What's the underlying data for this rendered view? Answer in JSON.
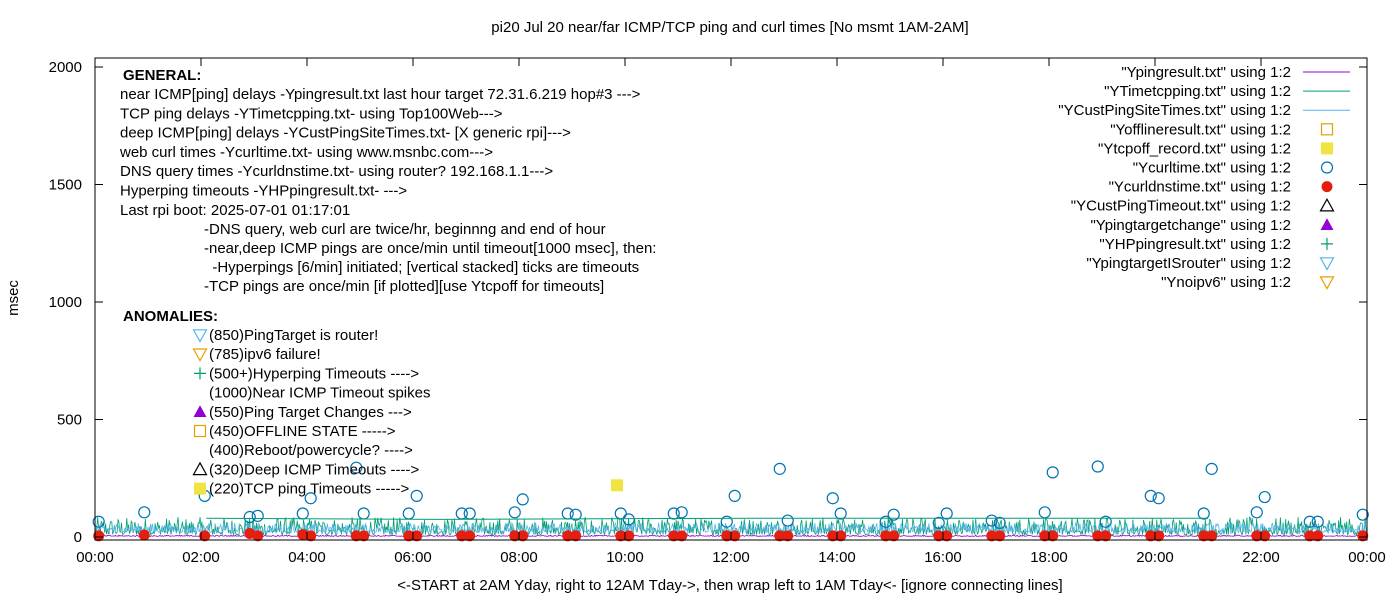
{
  "chart_data": {
    "type": "scatter",
    "title": "pi20 Jul 20  near/far ICMP/TCP ping and curl times [No msmt 1AM-2AM]",
    "xlabel": "<-START at 2AM Yday, right to 12AM Tday->, then wrap left to 1AM Tday<- [ignore connecting lines]",
    "ylabel": "msec",
    "xlim": [
      0,
      24
    ],
    "ylim": [
      0,
      2100
    ],
    "x_ticks": [
      "00:00",
      "02:00",
      "04:00",
      "06:00",
      "08:00",
      "10:00",
      "12:00",
      "14:00",
      "16:00",
      "18:00",
      "20:00",
      "22:00",
      "00:00"
    ],
    "y_ticks": [
      0,
      500,
      1000,
      1500,
      2000
    ],
    "grid": false,
    "legend_position": "top-right",
    "legend": [
      {
        "label": "\"Ypingresult.txt\" using 1:2",
        "style": "line",
        "color": "#9400d3"
      },
      {
        "label": "\"YTimetcpping.txt\" using 1:2",
        "style": "line",
        "color": "#009e73"
      },
      {
        "label": "\"YCustPingSiteTimes.txt\" using 1:2",
        "style": "line",
        "color": "#56b4e9"
      },
      {
        "label": "\"Yofflineresult.txt\" using 1:2",
        "style": "open-square",
        "color": "#e69f00"
      },
      {
        "label": "\"Ytcpoff_record.txt\" using 1:2",
        "style": "filled-square",
        "color": "#f0e442"
      },
      {
        "label": "\"Ycurltime.txt\" using 1:2",
        "style": "open-circle",
        "color": "#0072b2"
      },
      {
        "label": "\"Ycurldnstime.txt\" using 1:2",
        "style": "filled-circle",
        "color": "#e51e10"
      },
      {
        "label": "\"YCustPingTimeout.txt\" using 1:2",
        "style": "open-triangle",
        "color": "#000000"
      },
      {
        "label": "\"Ypingtargetchange\" using 1:2",
        "style": "filled-triangle",
        "color": "#9400d3"
      },
      {
        "label": "\"YHPpingresult.txt\" using 1:2",
        "style": "plus",
        "color": "#009e73"
      },
      {
        "label": "\"YpingtargetISrouter\" using 1:2",
        "style": "open-triangle-down",
        "color": "#56b4e9"
      },
      {
        "label": "\"Ynoipv6\" using 1:2",
        "style": "open-triangle-down",
        "color": "#e69f00"
      }
    ],
    "general_heading": "GENERAL:",
    "general_lines": [
      "near ICMP[ping] delays -Ypingresult.txt last hour target 72.31.6.219 hop#3 --->",
      "TCP ping delays -YTimetcpping.txt- using Top100Web--->",
      "deep ICMP[ping] delays -YCustPingSiteTimes.txt- [X generic rpi]--->",
      "web curl times -Ycurltime.txt- using www.msnbc.com--->",
      "DNS query times -Ycurldnstime.txt- using router? 192.168.1.1--->",
      "Hyperping timeouts -YHPpingresult.txt- --->",
      "Last rpi boot: 2025-07-01 01:17:01"
    ],
    "general_notes": [
      "-DNS query, web curl are twice/hr, beginnng and end of hour",
      "-near,deep ICMP pings are once/min until timeout[1000 msec], then:",
      "  -Hyperpings [6/min] initiated; [vertical stacked] ticks are timeouts",
      "-TCP pings are once/min [if plotted][use Ytcpoff for timeouts]"
    ],
    "anomalies_heading": "ANOMALIES:",
    "anomalies": [
      {
        "label": "(850)PingTarget is router!",
        "marker": "open-triangle-down",
        "color": "#56b4e9"
      },
      {
        "label": "(785)ipv6 failure!",
        "marker": "open-triangle-down",
        "color": "#e69f00"
      },
      {
        "label": "(500+)Hyperping Timeouts ---->",
        "marker": "plus",
        "color": "#009e73"
      },
      {
        "label": "(1000)Near ICMP Timeout spikes",
        "marker": "none",
        "color": ""
      },
      {
        "label": "(550)Ping Target Changes --->",
        "marker": "filled-triangle",
        "color": "#9400d3"
      },
      {
        "label": "(450)OFFLINE STATE ----->",
        "marker": "open-square",
        "color": "#e69f00"
      },
      {
        "label": "(400)Reboot/powercycle? ---->",
        "marker": "none",
        "color": ""
      },
      {
        "label": "(320)Deep ICMP Timeouts ---->",
        "marker": "open-triangle",
        "color": "#000000"
      },
      {
        "label": "(220)TCP ping Timeouts ----->",
        "marker": "filled-square",
        "color": "#f0e442"
      }
    ],
    "series": [
      {
        "name": "\"Ycurltime.txt\" using 1:2",
        "marker": "open-circle",
        "color": "#0072b2",
        "points": [
          [
            0.07,
            65
          ],
          [
            0.93,
            105
          ],
          [
            2.07,
            175
          ],
          [
            2.92,
            85
          ],
          [
            3.07,
            90
          ],
          [
            3.92,
            100
          ],
          [
            4.07,
            165
          ],
          [
            4.93,
            295
          ],
          [
            5.07,
            100
          ],
          [
            5.92,
            100
          ],
          [
            6.07,
            175
          ],
          [
            6.92,
            100
          ],
          [
            7.07,
            100
          ],
          [
            7.92,
            105
          ],
          [
            8.07,
            160
          ],
          [
            8.92,
            100
          ],
          [
            9.07,
            95
          ],
          [
            9.92,
            100
          ],
          [
            10.07,
            75
          ],
          [
            10.92,
            100
          ],
          [
            11.07,
            105
          ],
          [
            11.92,
            65
          ],
          [
            12.07,
            175
          ],
          [
            12.92,
            290
          ],
          [
            13.07,
            70
          ],
          [
            13.92,
            165
          ],
          [
            14.07,
            100
          ],
          [
            14.92,
            65
          ],
          [
            15.07,
            95
          ],
          [
            15.92,
            60
          ],
          [
            16.07,
            100
          ],
          [
            16.92,
            70
          ],
          [
            17.07,
            60
          ],
          [
            17.92,
            105
          ],
          [
            18.07,
            275
          ],
          [
            18.92,
            300
          ],
          [
            19.07,
            65
          ],
          [
            19.92,
            175
          ],
          [
            20.07,
            165
          ],
          [
            20.92,
            100
          ],
          [
            21.07,
            290
          ],
          [
            21.92,
            105
          ],
          [
            22.07,
            170
          ],
          [
            22.92,
            65
          ],
          [
            23.07,
            65
          ],
          [
            23.92,
            95
          ]
        ]
      },
      {
        "name": "\"Ycurldnstime.txt\" using 1:2",
        "marker": "filled-circle",
        "color": "#e51e10",
        "points": [
          [
            0.07,
            5
          ],
          [
            0.93,
            8
          ],
          [
            2.07,
            5
          ],
          [
            2.92,
            15
          ],
          [
            3.07,
            5
          ],
          [
            3.92,
            10
          ],
          [
            4.07,
            5
          ],
          [
            4.93,
            5
          ],
          [
            5.07,
            5
          ],
          [
            5.92,
            5
          ],
          [
            6.07,
            5
          ],
          [
            6.92,
            5
          ],
          [
            7.07,
            5
          ],
          [
            7.92,
            5
          ],
          [
            8.07,
            5
          ],
          [
            8.92,
            5
          ],
          [
            9.07,
            5
          ],
          [
            9.92,
            5
          ],
          [
            10.07,
            5
          ],
          [
            10.92,
            5
          ],
          [
            11.07,
            5
          ],
          [
            11.92,
            5
          ],
          [
            12.07,
            5
          ],
          [
            12.92,
            5
          ],
          [
            13.07,
            5
          ],
          [
            13.92,
            5
          ],
          [
            14.07,
            5
          ],
          [
            14.92,
            5
          ],
          [
            15.07,
            5
          ],
          [
            15.92,
            5
          ],
          [
            16.07,
            5
          ],
          [
            16.92,
            5
          ],
          [
            17.07,
            5
          ],
          [
            17.92,
            5
          ],
          [
            18.07,
            5
          ],
          [
            18.92,
            5
          ],
          [
            19.07,
            5
          ],
          [
            19.92,
            5
          ],
          [
            20.07,
            5
          ],
          [
            20.92,
            5
          ],
          [
            21.07,
            5
          ],
          [
            21.92,
            5
          ],
          [
            22.07,
            5
          ],
          [
            22.92,
            5
          ],
          [
            23.07,
            5
          ],
          [
            23.92,
            5
          ]
        ]
      },
      {
        "name": "\"Ytcpoff_record.txt\" using 1:2",
        "marker": "filled-square",
        "color": "#f0e442",
        "points": [
          [
            9.85,
            220
          ]
        ]
      },
      {
        "name": "\"YTimetcpping.txt\" using 1:2",
        "marker": "line",
        "color": "#009e73",
        "points": [
          [
            2.1,
            80
          ],
          [
            6.5,
            75
          ],
          [
            12.5,
            80
          ],
          [
            21.0,
            80
          ]
        ]
      }
    ],
    "noise_lines": [
      {
        "name": "\"YTimetcpping.txt\" using 1:2",
        "color": "#009e73",
        "range": [
          0,
          24
        ],
        "base": 10,
        "spread": 75
      },
      {
        "name": "\"YCustPingSiteTimes.txt\" using 1:2",
        "color": "#56b4e9",
        "range": [
          0,
          24
        ],
        "base": 20,
        "spread": 40
      },
      {
        "name": "\"Ypingresult.txt\" using 1:2",
        "color": "#9400d3",
        "range": [
          0,
          24
        ],
        "base": 3,
        "spread": 5
      }
    ]
  }
}
